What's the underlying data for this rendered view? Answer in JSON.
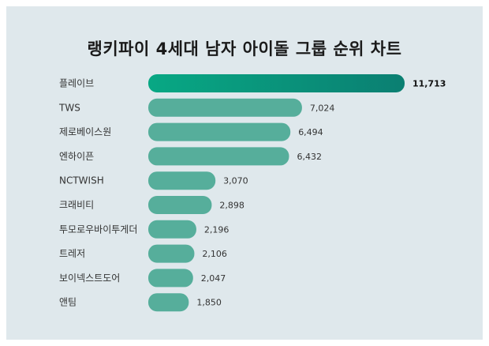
{
  "header": {
    "title": "랭키파이 4세대 남자 아이돌 그룹 순위 차트"
  },
  "chart_data": {
    "type": "bar",
    "orientation": "horizontal",
    "title": "랭키파이 4세대 남자 아이돌 그룹 순위 차트",
    "categories": [
      "플레이브",
      "TWS",
      "제로베이스원",
      "엔하이픈",
      "NCTWISH",
      "크래비티",
      "투모로우바이투게더",
      "트레저",
      "보이넥스트도어",
      "앤팀"
    ],
    "values": [
      11713,
      7024,
      6494,
      6432,
      3070,
      2898,
      2196,
      2106,
      2047,
      1850
    ],
    "value_labels": [
      "11,713",
      "7,024",
      "6,494",
      "6,432",
      "3,070",
      "2,898",
      "2,196",
      "2,106",
      "2,047",
      "1,850"
    ],
    "colors": {
      "highlight": "#08a884",
      "highlight_end": "#0b7f72",
      "bar": "#56ae9b"
    },
    "grid": false,
    "legend": "none"
  }
}
